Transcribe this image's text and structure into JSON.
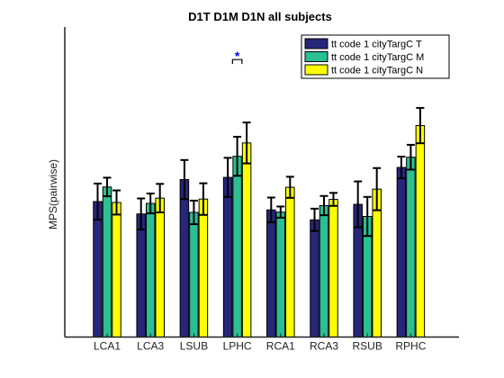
{
  "chart_data": {
    "type": "bar",
    "title": "D1T D1M D1N all subjects",
    "xlabel": "",
    "ylabel": "MPS(pairwise)",
    "ylim": [
      0,
      1
    ],
    "grid": false,
    "legend_position": "top-right",
    "categories": [
      "LCA1",
      "LCA3",
      "LSUB",
      "LPHC",
      "RCA1",
      "RCA3",
      "RSUB",
      "RPHC"
    ],
    "series": [
      {
        "name": "tt code 1 cityTargC T",
        "color": "#26267a",
        "values": [
          0.437,
          0.397,
          0.508,
          0.515,
          0.41,
          0.378,
          0.428,
          0.547
        ],
        "errors": [
          0.058,
          0.05,
          0.063,
          0.063,
          0.04,
          0.036,
          0.074,
          0.035
        ]
      },
      {
        "name": "tt code 1 cityTargC M",
        "color": "#2bbf94",
        "values": [
          0.484,
          0.431,
          0.402,
          0.583,
          0.403,
          0.424,
          0.389,
          0.58
        ],
        "errors": [
          0.03,
          0.032,
          0.038,
          0.063,
          0.018,
          0.031,
          0.063,
          0.04
        ]
      },
      {
        "name": "tt code 1 cityTargC N",
        "color": "#ffff00",
        "values": [
          0.434,
          0.448,
          0.445,
          0.626,
          0.483,
          0.444,
          0.477,
          0.682
        ],
        "errors": [
          0.039,
          0.046,
          0.051,
          0.066,
          0.034,
          0.021,
          0.068,
          0.057
        ]
      }
    ],
    "annotations": [
      {
        "text": "*",
        "category": "LPHC",
        "y": 0.895,
        "color": "#0000ff"
      }
    ]
  }
}
